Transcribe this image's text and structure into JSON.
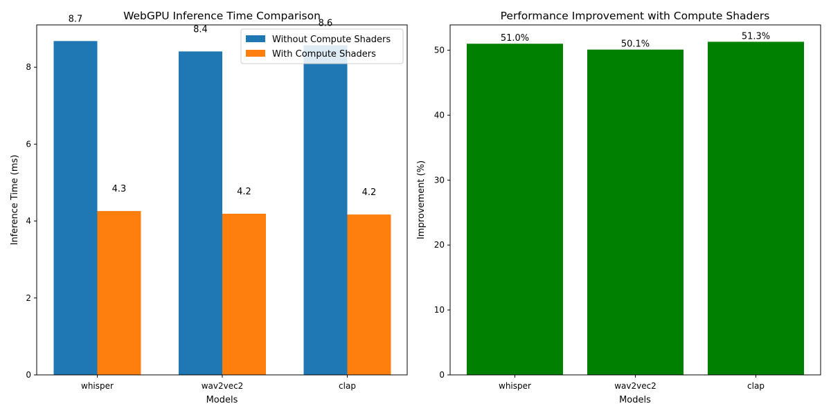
{
  "chart_data": [
    {
      "type": "bar",
      "title": "WebGPU Inference Time Comparison",
      "xlabel": "Models",
      "ylabel": "Inference Time (ms)",
      "categories": [
        "whisper",
        "wav2vec2",
        "clap"
      ],
      "ylim": [
        0,
        9.1
      ],
      "yticks": [
        0,
        2,
        4,
        6,
        8
      ],
      "legend_position": "upper right",
      "series": [
        {
          "name": "Without Compute Shaders",
          "color": "#1f77b4",
          "values": [
            8.68,
            8.41,
            8.57
          ],
          "labels": [
            "8.7",
            "8.4",
            "8.6"
          ]
        },
        {
          "name": "With Compute Shaders",
          "color": "#ff7f0e",
          "values": [
            4.26,
            4.19,
            4.17
          ],
          "labels": [
            "4.3",
            "4.2",
            "4.2"
          ]
        }
      ]
    },
    {
      "type": "bar",
      "title": "Performance Improvement with Compute Shaders",
      "xlabel": "Models",
      "ylabel": "Improvement (%)",
      "categories": [
        "whisper",
        "wav2vec2",
        "clap"
      ],
      "ylim": [
        0,
        53.9
      ],
      "yticks": [
        0,
        10,
        20,
        30,
        40,
        50
      ],
      "series": [
        {
          "color": "#008000",
          "values": [
            51.0,
            50.1,
            51.3
          ],
          "labels": [
            "51.0%",
            "50.1%",
            "51.3%"
          ]
        }
      ]
    }
  ]
}
